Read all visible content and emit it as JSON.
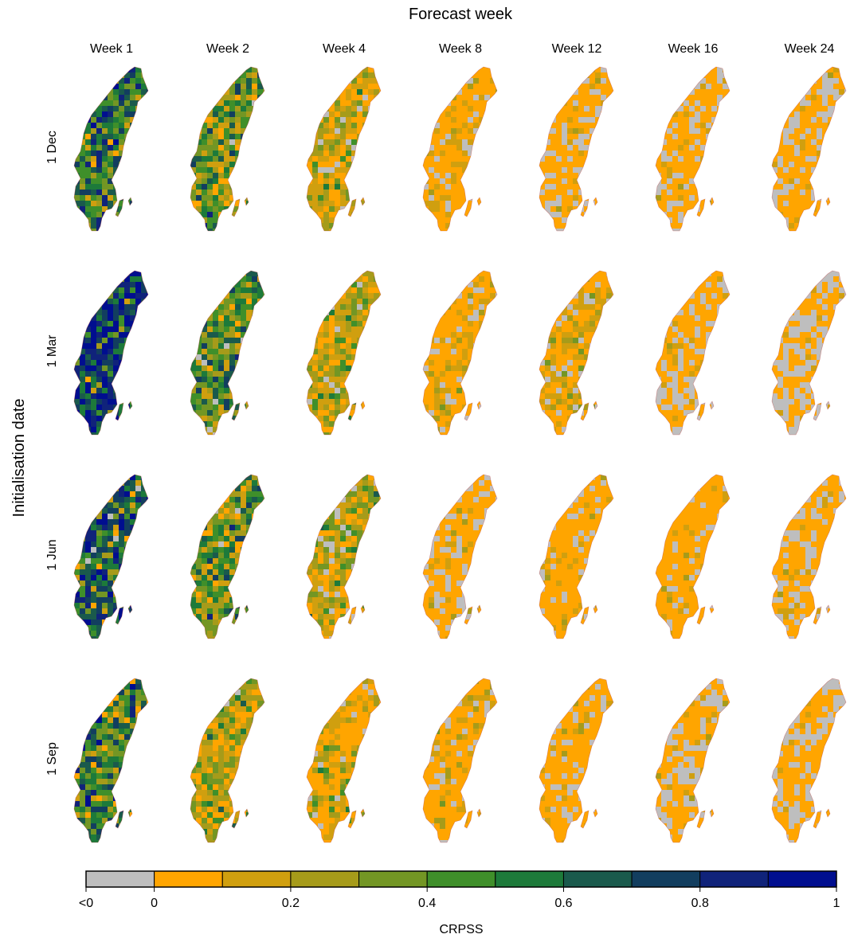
{
  "chart_data": {
    "type": "heatmap",
    "title": "Forecast week",
    "ylabel": "Initialisation date",
    "columns": [
      "Week 1",
      "Week 2",
      "Week 4",
      "Week 8",
      "Week 12",
      "Week 16",
      "Week 24"
    ],
    "rows": [
      "1 Dec",
      "1 Mar",
      "1 Jun",
      "1 Sep"
    ],
    "colorbar": {
      "label": "CRPSS",
      "tick_labels": [
        "<0",
        "0",
        "0.2",
        "0.4",
        "0.6",
        "0.8",
        "1"
      ],
      "tick_positions": [
        -1,
        0,
        2,
        4,
        6,
        8,
        10
      ],
      "bins": [
        {
          "range": "<0",
          "color": "#bebebe"
        },
        {
          "range": "0-0.1",
          "color": "#ffa500"
        },
        {
          "range": "0.1-0.2",
          "color": "#d09f0f"
        },
        {
          "range": "0.2-0.3",
          "color": "#a69b1a"
        },
        {
          "range": "0.3-0.4",
          "color": "#739624"
        },
        {
          "range": "0.4-0.5",
          "color": "#3f8f2a"
        },
        {
          "range": "0.5-0.6",
          "color": "#1d7a3a"
        },
        {
          "range": "0.6-0.7",
          "color": "#1a5a4c"
        },
        {
          "range": "0.7-0.8",
          "color": "#123e5f"
        },
        {
          "range": "0.8-0.9",
          "color": "#10237a"
        },
        {
          "range": "0.9-1",
          "color": "#000e8f"
        }
      ]
    },
    "panel_mix_weights": [
      [
        [
          0.0,
          0.02,
          0.05,
          0.07,
          0.12,
          0.16,
          0.18,
          0.18,
          0.12,
          0.08,
          0.02
        ],
        [
          0.02,
          0.08,
          0.13,
          0.2,
          0.2,
          0.15,
          0.11,
          0.07,
          0.03,
          0.01,
          0.0
        ],
        [
          0.08,
          0.28,
          0.3,
          0.2,
          0.09,
          0.04,
          0.01,
          0.0,
          0.0,
          0.0,
          0.0
        ],
        [
          0.18,
          0.64,
          0.14,
          0.04,
          0.0,
          0.0,
          0.0,
          0.0,
          0.0,
          0.0,
          0.0
        ],
        [
          0.28,
          0.6,
          0.1,
          0.02,
          0.0,
          0.0,
          0.0,
          0.0,
          0.0,
          0.0,
          0.0
        ],
        [
          0.3,
          0.62,
          0.07,
          0.01,
          0.0,
          0.0,
          0.0,
          0.0,
          0.0,
          0.0,
          0.0
        ],
        [
          0.36,
          0.58,
          0.05,
          0.01,
          0.0,
          0.0,
          0.0,
          0.0,
          0.0,
          0.0,
          0.0
        ]
      ],
      [
        [
          0.0,
          0.01,
          0.02,
          0.03,
          0.05,
          0.06,
          0.08,
          0.1,
          0.15,
          0.2,
          0.3
        ],
        [
          0.02,
          0.06,
          0.1,
          0.16,
          0.2,
          0.18,
          0.13,
          0.09,
          0.05,
          0.01,
          0.0
        ],
        [
          0.05,
          0.25,
          0.32,
          0.22,
          0.1,
          0.04,
          0.02,
          0.0,
          0.0,
          0.0,
          0.0
        ],
        [
          0.12,
          0.56,
          0.2,
          0.1,
          0.02,
          0.0,
          0.0,
          0.0,
          0.0,
          0.0,
          0.0
        ],
        [
          0.14,
          0.5,
          0.2,
          0.12,
          0.04,
          0.0,
          0.0,
          0.0,
          0.0,
          0.0,
          0.0
        ],
        [
          0.34,
          0.56,
          0.08,
          0.02,
          0.0,
          0.0,
          0.0,
          0.0,
          0.0,
          0.0,
          0.0
        ],
        [
          0.52,
          0.44,
          0.04,
          0.0,
          0.0,
          0.0,
          0.0,
          0.0,
          0.0,
          0.0,
          0.0
        ]
      ],
      [
        [
          0.02,
          0.03,
          0.04,
          0.06,
          0.08,
          0.1,
          0.12,
          0.16,
          0.16,
          0.13,
          0.1
        ],
        [
          0.02,
          0.08,
          0.12,
          0.16,
          0.18,
          0.16,
          0.13,
          0.09,
          0.05,
          0.01,
          0.0
        ],
        [
          0.08,
          0.25,
          0.25,
          0.2,
          0.12,
          0.06,
          0.03,
          0.01,
          0.0,
          0.0,
          0.0
        ],
        [
          0.28,
          0.6,
          0.08,
          0.03,
          0.01,
          0.0,
          0.0,
          0.0,
          0.0,
          0.0,
          0.0
        ],
        [
          0.16,
          0.74,
          0.08,
          0.02,
          0.0,
          0.0,
          0.0,
          0.0,
          0.0,
          0.0,
          0.0
        ],
        [
          0.1,
          0.8,
          0.08,
          0.02,
          0.0,
          0.0,
          0.0,
          0.0,
          0.0,
          0.0,
          0.0
        ],
        [
          0.26,
          0.66,
          0.07,
          0.01,
          0.0,
          0.0,
          0.0,
          0.0,
          0.0,
          0.0,
          0.0
        ]
      ],
      [
        [
          0.0,
          0.04,
          0.08,
          0.1,
          0.16,
          0.18,
          0.16,
          0.12,
          0.09,
          0.05,
          0.02
        ],
        [
          0.02,
          0.26,
          0.2,
          0.22,
          0.16,
          0.08,
          0.04,
          0.02,
          0.0,
          0.0,
          0.0
        ],
        [
          0.06,
          0.5,
          0.22,
          0.14,
          0.05,
          0.02,
          0.01,
          0.0,
          0.0,
          0.0,
          0.0
        ],
        [
          0.14,
          0.66,
          0.13,
          0.06,
          0.01,
          0.0,
          0.0,
          0.0,
          0.0,
          0.0,
          0.0
        ],
        [
          0.16,
          0.74,
          0.07,
          0.03,
          0.0,
          0.0,
          0.0,
          0.0,
          0.0,
          0.0,
          0.0
        ],
        [
          0.34,
          0.6,
          0.05,
          0.01,
          0.0,
          0.0,
          0.0,
          0.0,
          0.0,
          0.0,
          0.0
        ],
        [
          0.4,
          0.55,
          0.04,
          0.01,
          0.0,
          0.0,
          0.0,
          0.0,
          0.0,
          0.0,
          0.0
        ]
      ]
    ]
  }
}
